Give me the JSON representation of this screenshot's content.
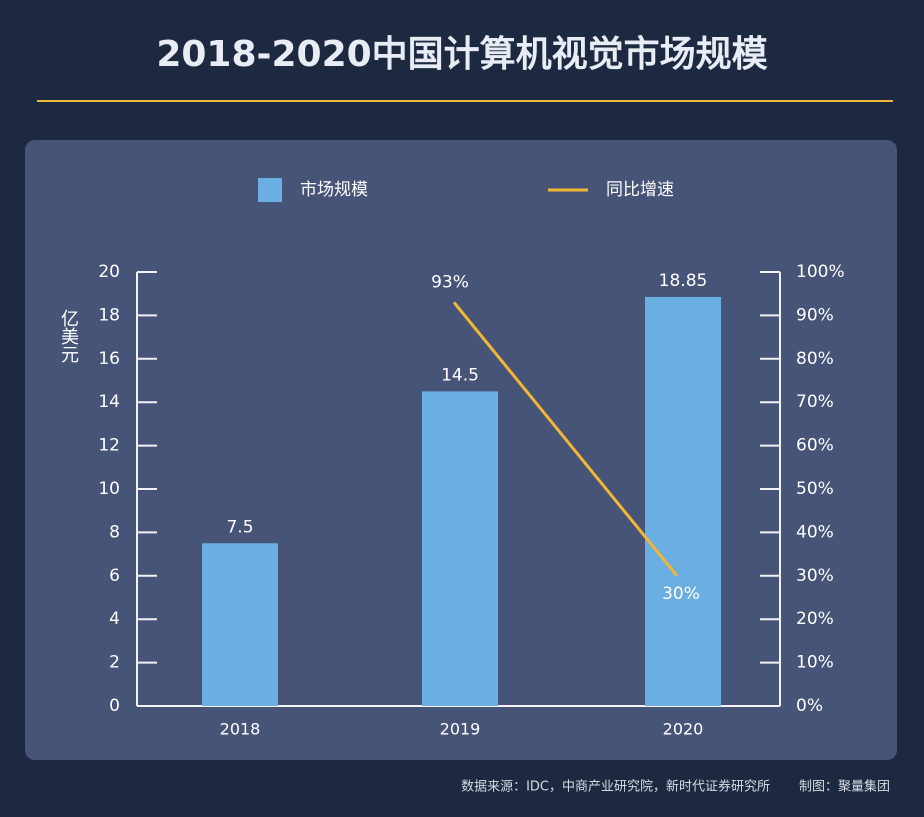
{
  "chart_data": {
    "type": "bar_line",
    "title": "2018-2020中国计算机视觉市场规模",
    "y_label": "亿美元",
    "categories": [
      "2018",
      "2019",
      "2020"
    ],
    "series": [
      {
        "name": "市场规模",
        "type": "bar",
        "color": "#6aaee2",
        "values": [
          7.5,
          14.5,
          18.85
        ]
      },
      {
        "name": "同比增速",
        "type": "line",
        "axis": "y2",
        "color": "#f3b633",
        "values": [
          null,
          93,
          30
        ],
        "value_labels": [
          null,
          "93%",
          "30%"
        ]
      }
    ],
    "ylim": [
      0,
      20
    ],
    "yticks": [
      0,
      2,
      4,
      6,
      8,
      10,
      12,
      14,
      16,
      18,
      20
    ],
    "y2lim": [
      0,
      100
    ],
    "y2ticks": [
      {
        "value": 0,
        "label": "0%"
      },
      {
        "value": 10,
        "label": "10%"
      },
      {
        "value": 20,
        "label": "20%"
      },
      {
        "value": 30,
        "label": "30%"
      },
      {
        "value": 40,
        "label": "40%"
      },
      {
        "value": 50,
        "label": "50%"
      },
      {
        "value": 60,
        "label": "60%"
      },
      {
        "value": 70,
        "label": "70%"
      },
      {
        "value": 80,
        "label": "80%"
      },
      {
        "value": 90,
        "label": "90%"
      },
      {
        "value": 100,
        "label": "100%"
      }
    ],
    "source": "数据来源：IDC，中商产业研究院，新时代证券研究所",
    "credit": "制图：聚量集团"
  }
}
